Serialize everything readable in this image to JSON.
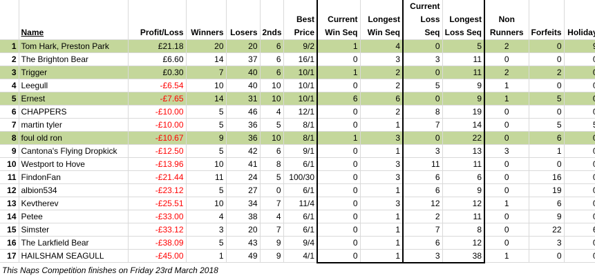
{
  "headers": {
    "name": "Name",
    "profit_loss": "Profit/Loss",
    "winners": "Winners",
    "losers": "Losers",
    "seconds": "2nds",
    "best_price": [
      "Best",
      "Price"
    ],
    "current_win_seq": [
      "Current",
      "Win Seq"
    ],
    "longest_win_seq": [
      "Longest",
      "Win Seq"
    ],
    "current_loss_seq": [
      "Current",
      "Loss Seq"
    ],
    "longest_loss_seq": [
      "Longest",
      "Loss Seq"
    ],
    "non_runners": [
      "Non",
      "Runners"
    ],
    "forfeits": "Forfeits",
    "holiday": "Holiday"
  },
  "rows": [
    {
      "rank": "1",
      "name": "Tom Hark, Preston Park",
      "pl": "£21.18",
      "w": "20",
      "l": "20",
      "s": "6",
      "bp": "9/2",
      "cws": "1",
      "lws": "4",
      "cls": "0",
      "lls": "5",
      "nr": "2",
      "f": "0",
      "h": "9",
      "highlight": true,
      "neg": false
    },
    {
      "rank": "2",
      "name": "The Brighton Bear",
      "pl": "£6.60",
      "w": "14",
      "l": "37",
      "s": "6",
      "bp": "16/1",
      "cws": "0",
      "lws": "3",
      "cls": "3",
      "lls": "11",
      "nr": "0",
      "f": "0",
      "h": "0",
      "highlight": false,
      "neg": false
    },
    {
      "rank": "3",
      "name": "Trigger",
      "pl": "£0.30",
      "w": "7",
      "l": "40",
      "s": "6",
      "bp": "10/1",
      "cws": "1",
      "lws": "2",
      "cls": "0",
      "lls": "11",
      "nr": "2",
      "f": "2",
      "h": "0",
      "highlight": true,
      "neg": false
    },
    {
      "rank": "4",
      "name": "Leegull",
      "pl": "-£6.54",
      "w": "10",
      "l": "40",
      "s": "10",
      "bp": "10/1",
      "cws": "0",
      "lws": "2",
      "cls": "5",
      "lls": "9",
      "nr": "1",
      "f": "0",
      "h": "0",
      "highlight": false,
      "neg": true
    },
    {
      "rank": "5",
      "name": "Ernest",
      "pl": "-£7.65",
      "w": "14",
      "l": "31",
      "s": "10",
      "bp": "10/1",
      "cws": "6",
      "lws": "6",
      "cls": "0",
      "lls": "9",
      "nr": "1",
      "f": "5",
      "h": "0",
      "highlight": true,
      "neg": true
    },
    {
      "rank": "6",
      "name": "CHAPPERS",
      "pl": "-£10.00",
      "w": "5",
      "l": "46",
      "s": "4",
      "bp": "12/1",
      "cws": "0",
      "lws": "2",
      "cls": "8",
      "lls": "19",
      "nr": "0",
      "f": "0",
      "h": "0",
      "highlight": false,
      "neg": true
    },
    {
      "rank": "7",
      "name": "martin tyler",
      "pl": "-£10.00",
      "w": "5",
      "l": "36",
      "s": "5",
      "bp": "8/1",
      "cws": "0",
      "lws": "1",
      "cls": "7",
      "lls": "14",
      "nr": "0",
      "f": "5",
      "h": "5",
      "highlight": false,
      "neg": true
    },
    {
      "rank": "8",
      "name": "foul old ron",
      "pl": "-£10.67",
      "w": "9",
      "l": "36",
      "s": "10",
      "bp": "8/1",
      "cws": "1",
      "lws": "3",
      "cls": "0",
      "lls": "22",
      "nr": "0",
      "f": "6",
      "h": "0",
      "highlight": true,
      "neg": true
    },
    {
      "rank": "9",
      "name": "Cantona's Flying Dropkick",
      "pl": "-£12.50",
      "w": "5",
      "l": "42",
      "s": "6",
      "bp": "9/1",
      "cws": "0",
      "lws": "1",
      "cls": "3",
      "lls": "13",
      "nr": "3",
      "f": "1",
      "h": "0",
      "highlight": false,
      "neg": true
    },
    {
      "rank": "10",
      "name": "Westport to Hove",
      "pl": "-£13.96",
      "w": "10",
      "l": "41",
      "s": "8",
      "bp": "6/1",
      "cws": "0",
      "lws": "3",
      "cls": "11",
      "lls": "11",
      "nr": "0",
      "f": "0",
      "h": "0",
      "highlight": false,
      "neg": true
    },
    {
      "rank": "11",
      "name": "FindonFan",
      "pl": "-£21.44",
      "w": "11",
      "l": "24",
      "s": "5",
      "bp": "100/30",
      "cws": "0",
      "lws": "3",
      "cls": "6",
      "lls": "6",
      "nr": "0",
      "f": "16",
      "h": "0",
      "highlight": false,
      "neg": true
    },
    {
      "rank": "12",
      "name": "albion534",
      "pl": "-£23.12",
      "w": "5",
      "l": "27",
      "s": "0",
      "bp": "6/1",
      "cws": "0",
      "lws": "1",
      "cls": "6",
      "lls": "9",
      "nr": "0",
      "f": "19",
      "h": "0",
      "highlight": false,
      "neg": true
    },
    {
      "rank": "13",
      "name": "Kevtherev",
      "pl": "-£25.51",
      "w": "10",
      "l": "34",
      "s": "7",
      "bp": "11/4",
      "cws": "0",
      "lws": "3",
      "cls": "12",
      "lls": "12",
      "nr": "1",
      "f": "6",
      "h": "0",
      "highlight": false,
      "neg": true
    },
    {
      "rank": "14",
      "name": "Petee",
      "pl": "-£33.00",
      "w": "4",
      "l": "38",
      "s": "4",
      "bp": "6/1",
      "cws": "0",
      "lws": "1",
      "cls": "2",
      "lls": "11",
      "nr": "0",
      "f": "9",
      "h": "0",
      "highlight": false,
      "neg": true
    },
    {
      "rank": "15",
      "name": "Simster",
      "pl": "-£33.12",
      "w": "3",
      "l": "20",
      "s": "7",
      "bp": "6/1",
      "cws": "0",
      "lws": "1",
      "cls": "7",
      "lls": "8",
      "nr": "0",
      "f": "22",
      "h": "6",
      "highlight": false,
      "neg": true
    },
    {
      "rank": "16",
      "name": "The Larkfield Bear",
      "pl": "-£38.09",
      "w": "5",
      "l": "43",
      "s": "9",
      "bp": "9/4",
      "cws": "0",
      "lws": "1",
      "cls": "6",
      "lls": "12",
      "nr": "0",
      "f": "3",
      "h": "0",
      "highlight": false,
      "neg": true
    },
    {
      "rank": "17",
      "name": "HAILSHAM SEAGULL",
      "pl": "-£45.00",
      "w": "1",
      "l": "49",
      "s": "9",
      "bp": "4/1",
      "cws": "0",
      "lws": "1",
      "cls": "3",
      "lls": "38",
      "nr": "1",
      "f": "0",
      "h": "0",
      "highlight": false,
      "neg": true
    }
  ],
  "footer": "This Naps Competition finishes on Friday 23rd March 2018",
  "colors": {
    "highlight": "#c4d79b",
    "negative": "#ff0000"
  }
}
